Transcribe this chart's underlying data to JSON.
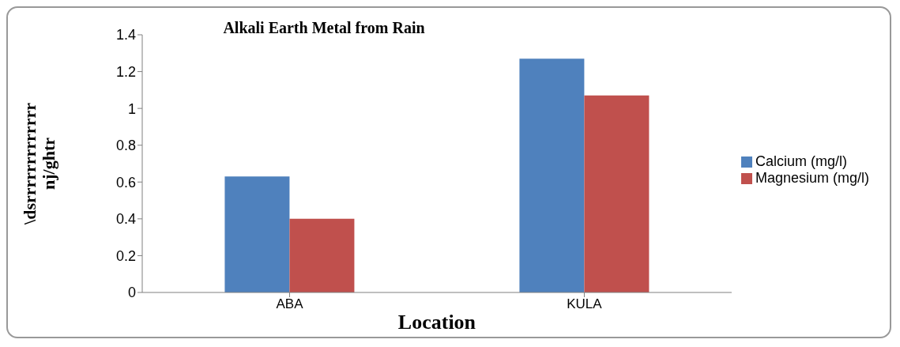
{
  "chart_data": {
    "type": "bar",
    "title": "Alkali Earth Metal from Rain",
    "xlabel": "Location",
    "ylabel": "\\dsrrrrrrrrrrrrr nj/ghtr",
    "categories": [
      "ABA",
      "KULA"
    ],
    "series": [
      {
        "name": "Calcium (mg/l)",
        "color": "#4f81bd",
        "values": [
          0.63,
          1.27
        ]
      },
      {
        "name": "Magnesium (mg/l)",
        "color": "#c0504d",
        "values": [
          0.4,
          1.07
        ]
      }
    ],
    "ylim": [
      0,
      1.4
    ],
    "yticks": [
      0,
      0.2,
      0.4,
      0.6,
      0.8,
      1,
      1.2,
      1.4
    ],
    "grid": false,
    "legend": "right"
  }
}
